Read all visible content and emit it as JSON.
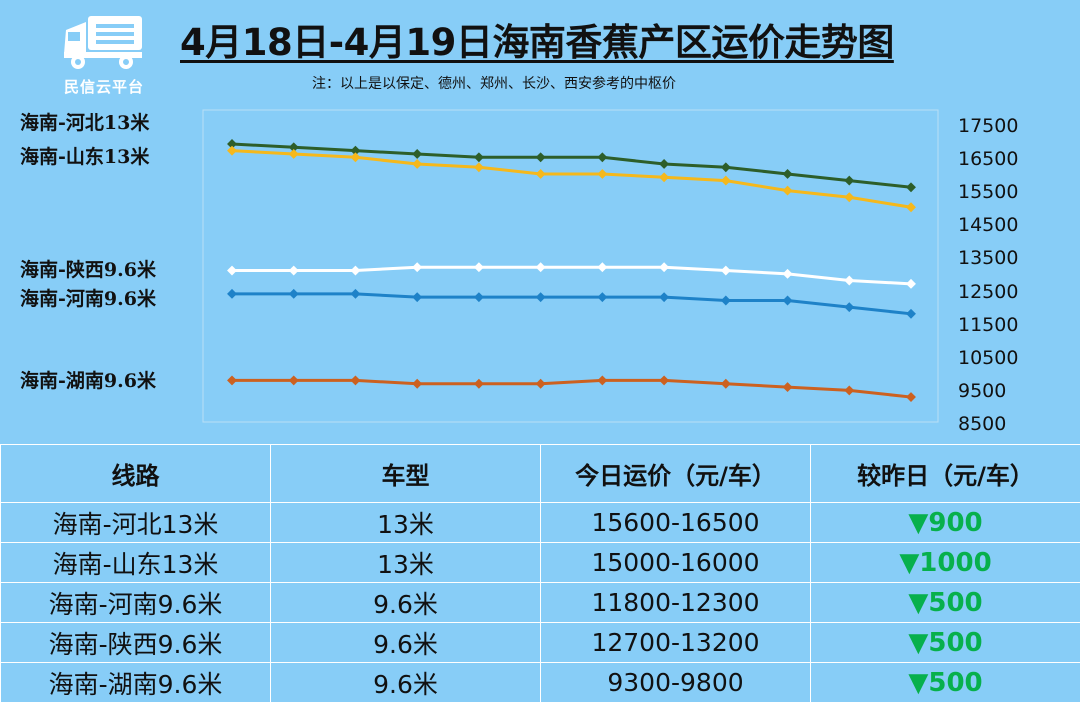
{
  "logo": {
    "text": "民信云平台",
    "icon": "truck-icon",
    "color": "#ffffff"
  },
  "title": "4月18日-4月19日海南香蕉产区运价走势图",
  "note": "注：以上是以保定、德州、郑州、长沙、西安参考的中枢价",
  "chart_data": {
    "type": "line",
    "y_ticks": [
      "17500",
      "16500",
      "15500",
      "14500",
      "13500",
      "12500",
      "11500",
      "10500",
      "9500",
      "8500"
    ],
    "series": [
      {
        "name": "海南-河北13米",
        "color": "#2d5e2a",
        "values": [
          16900,
          16800,
          16700,
          16600,
          16500,
          16500,
          16500,
          16300,
          16200,
          16000,
          15800,
          15600
        ]
      },
      {
        "name": "海南-山东13米",
        "color": "#f5b81c",
        "values": [
          16700,
          16600,
          16500,
          16300,
          16200,
          16000,
          16000,
          15900,
          15800,
          15500,
          15300,
          15000
        ]
      },
      {
        "name": "海南-陕西9.6米",
        "color": "#ffffff",
        "values": [
          13100,
          13100,
          13100,
          13200,
          13200,
          13200,
          13200,
          13200,
          13100,
          13000,
          12800,
          12700
        ]
      },
      {
        "name": "海南-河南9.6米",
        "color": "#1e82c8",
        "values": [
          12400,
          12400,
          12400,
          12300,
          12300,
          12300,
          12300,
          12300,
          12200,
          12200,
          12000,
          11800
        ]
      },
      {
        "name": "海南-湖南9.6米",
        "color": "#cc6120",
        "values": [
          9800,
          9800,
          9800,
          9700,
          9700,
          9700,
          9800,
          9800,
          9700,
          9600,
          9500,
          9300
        ]
      }
    ],
    "grid": false
  },
  "table": {
    "headers": [
      "线路",
      "车型",
      "今日运价（元/车）",
      "较昨日（元/车）"
    ],
    "change_color": "#07b04c",
    "rows": [
      [
        "海南-河北13米",
        "13米",
        "15600-16500",
        "▼900"
      ],
      [
        "海南-山东13米",
        "13米",
        "15000-16000",
        "▼1000"
      ],
      [
        "海南-河南9.6米",
        "9.6米",
        "11800-12300",
        "▼500"
      ],
      [
        "海南-陕西9.6米",
        "9.6米",
        "12700-13200",
        "▼500"
      ],
      [
        "海南-湖南9.6米",
        "9.6米",
        "9300-9800",
        "▼500"
      ]
    ]
  }
}
